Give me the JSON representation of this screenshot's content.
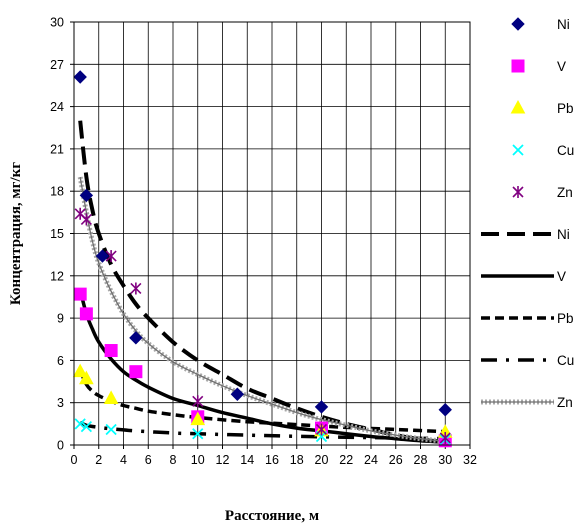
{
  "chart_data": {
    "type": "scatter",
    "xlabel": "Расстояние, м",
    "ylabel": "Концентрация, мг/кг",
    "xlim": [
      0,
      32
    ],
    "ylim": [
      0,
      30
    ],
    "x_ticks": [
      0,
      2,
      4,
      6,
      8,
      10,
      12,
      14,
      16,
      18,
      20,
      22,
      24,
      26,
      28,
      30,
      32
    ],
    "y_ticks": [
      0,
      3,
      6,
      9,
      12,
      15,
      18,
      21,
      24,
      27,
      30
    ],
    "grid": true,
    "legend_position": "right",
    "series": [
      {
        "name": "Ni",
        "kind": "points",
        "marker": "diamond",
        "color": "#000080",
        "points": [
          [
            0.5,
            26.1
          ],
          [
            1,
            17.7
          ],
          [
            2.3,
            13.4
          ],
          [
            5,
            7.6
          ],
          [
            13.2,
            3.6
          ],
          [
            20,
            2.7
          ],
          [
            30,
            2.5
          ]
        ]
      },
      {
        "name": "V",
        "kind": "points",
        "marker": "square",
        "color": "#ff00ff",
        "points": [
          [
            0.5,
            10.7
          ],
          [
            1,
            9.3
          ],
          [
            3,
            6.7
          ],
          [
            5,
            5.2
          ],
          [
            10,
            2.0
          ],
          [
            20,
            1.2
          ],
          [
            30,
            0.3
          ]
        ]
      },
      {
        "name": "Pb",
        "kind": "points",
        "marker": "triangle",
        "color": "#ffff00",
        "points": [
          [
            0.5,
            5.2
          ],
          [
            1,
            4.7
          ],
          [
            3,
            3.3
          ],
          [
            10,
            1.8
          ],
          [
            20,
            1.0
          ],
          [
            30,
            0.9
          ]
        ]
      },
      {
        "name": "Cu",
        "kind": "points",
        "marker": "x",
        "color": "#00ffff",
        "points": [
          [
            0.5,
            1.5
          ],
          [
            1,
            1.3
          ],
          [
            3,
            1.1
          ],
          [
            10,
            0.8
          ],
          [
            20,
            0.6
          ],
          [
            30,
            0.4
          ]
        ]
      },
      {
        "name": "Zn",
        "kind": "points",
        "marker": "asterisk",
        "color": "#800080",
        "points": [
          [
            0.5,
            16.4
          ],
          [
            1,
            16.0
          ],
          [
            3,
            13.4
          ],
          [
            5,
            11.1
          ],
          [
            10,
            3.1
          ],
          [
            20,
            1.1
          ],
          [
            30,
            0.5
          ]
        ]
      },
      {
        "name": "Ni",
        "kind": "trend",
        "style": "longdash",
        "color": "#000000",
        "points": [
          [
            0.5,
            23.0
          ],
          [
            1,
            19.0
          ],
          [
            1.5,
            16.6
          ],
          [
            2,
            15.0
          ],
          [
            3,
            12.8
          ],
          [
            4,
            11.3
          ],
          [
            5,
            10.0
          ],
          [
            6,
            9.0
          ],
          [
            8,
            7.3
          ],
          [
            10,
            6.0
          ],
          [
            12,
            5.0
          ],
          [
            14,
            4.0
          ],
          [
            16,
            3.3
          ],
          [
            18,
            2.6
          ],
          [
            20,
            2.0
          ],
          [
            22,
            1.5
          ],
          [
            24,
            1.1
          ],
          [
            26,
            0.7
          ],
          [
            28,
            0.4
          ],
          [
            30,
            0.2
          ]
        ]
      },
      {
        "name": "V",
        "kind": "trend",
        "style": "solid",
        "color": "#000000",
        "points": [
          [
            0.5,
            11.0
          ],
          [
            1,
            9.3
          ],
          [
            1.5,
            8.2
          ],
          [
            2,
            7.3
          ],
          [
            3,
            6.1
          ],
          [
            4,
            5.2
          ],
          [
            5,
            4.6
          ],
          [
            6,
            4.1
          ],
          [
            8,
            3.3
          ],
          [
            10,
            2.8
          ],
          [
            12,
            2.3
          ],
          [
            14,
            1.9
          ],
          [
            16,
            1.5
          ],
          [
            18,
            1.2
          ],
          [
            20,
            1.0
          ],
          [
            22,
            0.8
          ],
          [
            24,
            0.6
          ],
          [
            26,
            0.45
          ],
          [
            28,
            0.3
          ],
          [
            30,
            0.2
          ]
        ]
      },
      {
        "name": "Pb",
        "kind": "trend",
        "style": "dash",
        "color": "#000000",
        "points": [
          [
            0.5,
            5.3
          ],
          [
            1,
            4.3
          ],
          [
            1.5,
            3.8
          ],
          [
            2,
            3.5
          ],
          [
            3,
            3.1
          ],
          [
            4,
            2.8
          ],
          [
            5,
            2.6
          ],
          [
            6,
            2.4
          ],
          [
            8,
            2.15
          ],
          [
            10,
            1.95
          ],
          [
            14,
            1.65
          ],
          [
            18,
            1.45
          ],
          [
            22,
            1.25
          ],
          [
            26,
            1.1
          ],
          [
            30,
            0.95
          ]
        ]
      },
      {
        "name": "Cu",
        "kind": "trend",
        "style": "dashdot",
        "color": "#000000",
        "points": [
          [
            0.5,
            1.6
          ],
          [
            1,
            1.4
          ],
          [
            2,
            1.25
          ],
          [
            3,
            1.15
          ],
          [
            5,
            1.0
          ],
          [
            8,
            0.85
          ],
          [
            10,
            0.8
          ],
          [
            14,
            0.7
          ],
          [
            18,
            0.62
          ],
          [
            22,
            0.55
          ],
          [
            26,
            0.5
          ],
          [
            30,
            0.45
          ]
        ]
      },
      {
        "name": "Zn",
        "kind": "trend",
        "style": "dotted-double",
        "color": "#909090",
        "points": [
          [
            0.5,
            19.0
          ],
          [
            1,
            16.5
          ],
          [
            1.5,
            14.4
          ],
          [
            2,
            12.9
          ],
          [
            3,
            10.9
          ],
          [
            4,
            9.3
          ],
          [
            5,
            8.1
          ],
          [
            6,
            7.2
          ],
          [
            8,
            5.9
          ],
          [
            10,
            5.0
          ],
          [
            12,
            4.2
          ],
          [
            14,
            3.5
          ],
          [
            16,
            2.9
          ],
          [
            18,
            2.3
          ],
          [
            20,
            1.8
          ],
          [
            22,
            1.4
          ],
          [
            24,
            1.0
          ],
          [
            26,
            0.7
          ],
          [
            28,
            0.45
          ],
          [
            30,
            0.25
          ]
        ]
      }
    ]
  }
}
